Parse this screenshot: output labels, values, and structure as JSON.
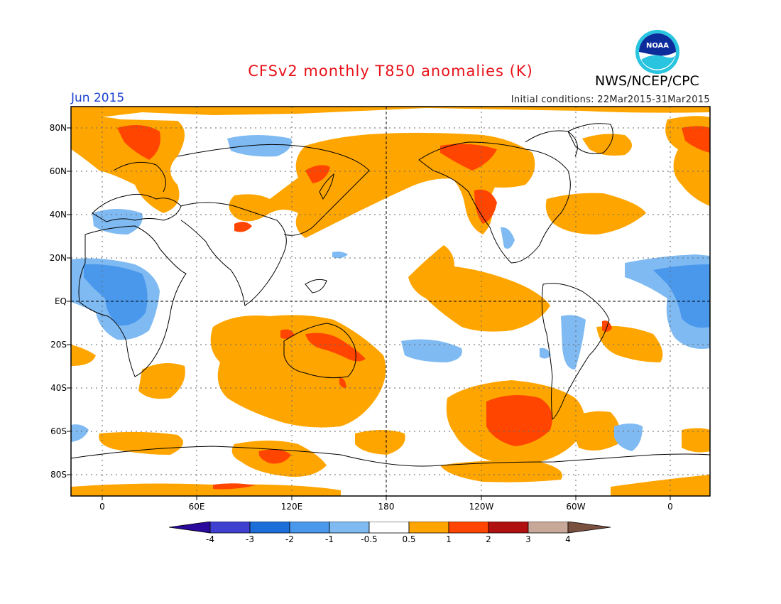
{
  "title": "CFSv2 monthly T850 anomalies (K)",
  "agency": "NWS/NCEP/CPC",
  "logo_text": "NOAA",
  "valid_month": "Jun 2015",
  "initial_conditions": "Initial conditions: 22Mar2015-31Mar2015",
  "lat_labels": [
    "80N",
    "60N",
    "40N",
    "20N",
    "EQ",
    "20S",
    "40S",
    "60S",
    "80S"
  ],
  "lon_labels": [
    "0",
    "60E",
    "120E",
    "180",
    "120W",
    "60W",
    "0"
  ],
  "colorbar": {
    "labels": [
      "-4",
      "-3",
      "-2",
      "-1",
      "-0.5",
      "0.5",
      "1",
      "2",
      "3",
      "4"
    ],
    "colors": [
      "#2a0a9c",
      "#4040d0",
      "#1c6fd8",
      "#4a98ec",
      "#7fbaf2",
      "#ffffff",
      "#ffa500",
      "#ff4500",
      "#b01010",
      "#c8a898",
      "#7a5040"
    ]
  }
}
